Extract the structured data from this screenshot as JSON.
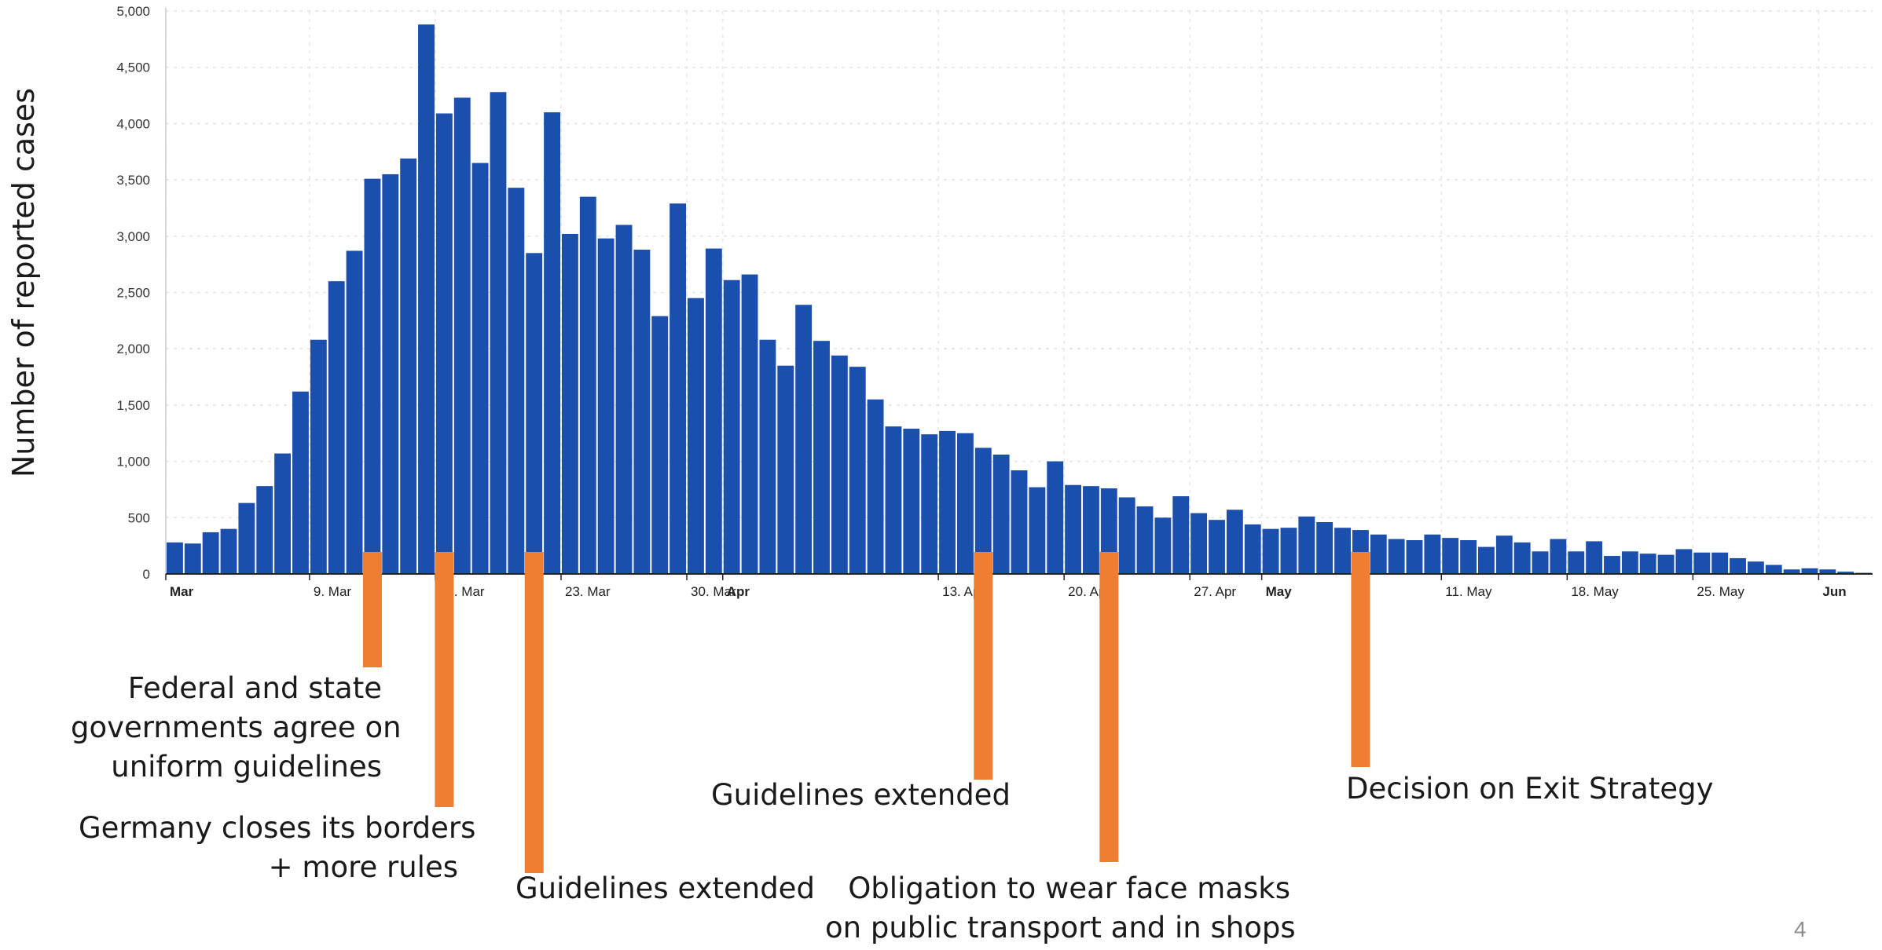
{
  "chart_data": {
    "type": "bar",
    "ylabel": "Number of reported cases",
    "ylim": [
      0,
      5000
    ],
    "yticks": [
      "0",
      "500",
      "1,000",
      "1,500",
      "2,000",
      "2,500",
      "3,000",
      "3,500",
      "4,000",
      "4,500",
      "5,000"
    ],
    "x_start_date": "2020-03-01",
    "x_end_date": "2020-06-03",
    "xticks": [
      {
        "date": "2020-03-01",
        "label": "Mar",
        "bold": true
      },
      {
        "date": "2020-03-09",
        "label": "9. Mar",
        "bold": false
      },
      {
        "date": "2020-03-16",
        "label": "16. Mar",
        "bold": false
      },
      {
        "date": "2020-03-23",
        "label": "23. Mar",
        "bold": false
      },
      {
        "date": "2020-03-30",
        "label": "30. Mar",
        "bold": false
      },
      {
        "date": "2020-04-01",
        "label": "Apr",
        "bold": true
      },
      {
        "date": "2020-04-13",
        "label": "13. Apr",
        "bold": false
      },
      {
        "date": "2020-04-20",
        "label": "20. Apr",
        "bold": false
      },
      {
        "date": "2020-04-27",
        "label": "27. Apr",
        "bold": false
      },
      {
        "date": "2020-05-01",
        "label": "May",
        "bold": true
      },
      {
        "date": "2020-05-11",
        "label": "11. May",
        "bold": false
      },
      {
        "date": "2020-05-18",
        "label": "18. May",
        "bold": false
      },
      {
        "date": "2020-05-25",
        "label": "25. May",
        "bold": false
      },
      {
        "date": "2020-06-01",
        "label": "Jun",
        "bold": true
      }
    ],
    "values": [
      280,
      270,
      370,
      400,
      630,
      780,
      1070,
      1620,
      2080,
      2600,
      2870,
      3510,
      3550,
      3690,
      4880,
      4090,
      4230,
      3650,
      4280,
      3430,
      2850,
      4100,
      3020,
      3350,
      2980,
      3100,
      2880,
      2290,
      3290,
      2450,
      2890,
      2610,
      2660,
      2080,
      1850,
      2390,
      2070,
      1940,
      1840,
      1550,
      1310,
      1290,
      1240,
      1270,
      1250,
      1120,
      1060,
      920,
      770,
      1000,
      790,
      780,
      760,
      680,
      600,
      500,
      690,
      540,
      480,
      570,
      440,
      400,
      410,
      510,
      460,
      410,
      390,
      350,
      310,
      300,
      350,
      320,
      300,
      240,
      340,
      280,
      200,
      310,
      200,
      290,
      160,
      200,
      180,
      170,
      220,
      190,
      190,
      140,
      110,
      80,
      40,
      50,
      40,
      20,
      10
    ],
    "bar_color": "#1a4fad",
    "grid": true,
    "annotations": [
      {
        "lines": [
          "Federal and state",
          "governments agree on",
          "uniform guidelines"
        ],
        "date": "2020-03-12"
      },
      {
        "lines": [
          "Germany closes its borders",
          "+ more rules"
        ],
        "date": "2020-03-16"
      },
      {
        "lines": [
          "Guidelines extended"
        ],
        "date": "2020-03-21"
      },
      {
        "lines": [
          "Guidelines extended"
        ],
        "date": "2020-04-15"
      },
      {
        "lines": [
          "Obligation to wear face masks",
          "on public transport and in shops"
        ],
        "date": "2020-04-22"
      },
      {
        "lines": [
          "Decision on Exit Strategy"
        ],
        "date": "2020-05-06"
      }
    ],
    "annotation_color": "#ef7d32"
  },
  "page_number": "4"
}
